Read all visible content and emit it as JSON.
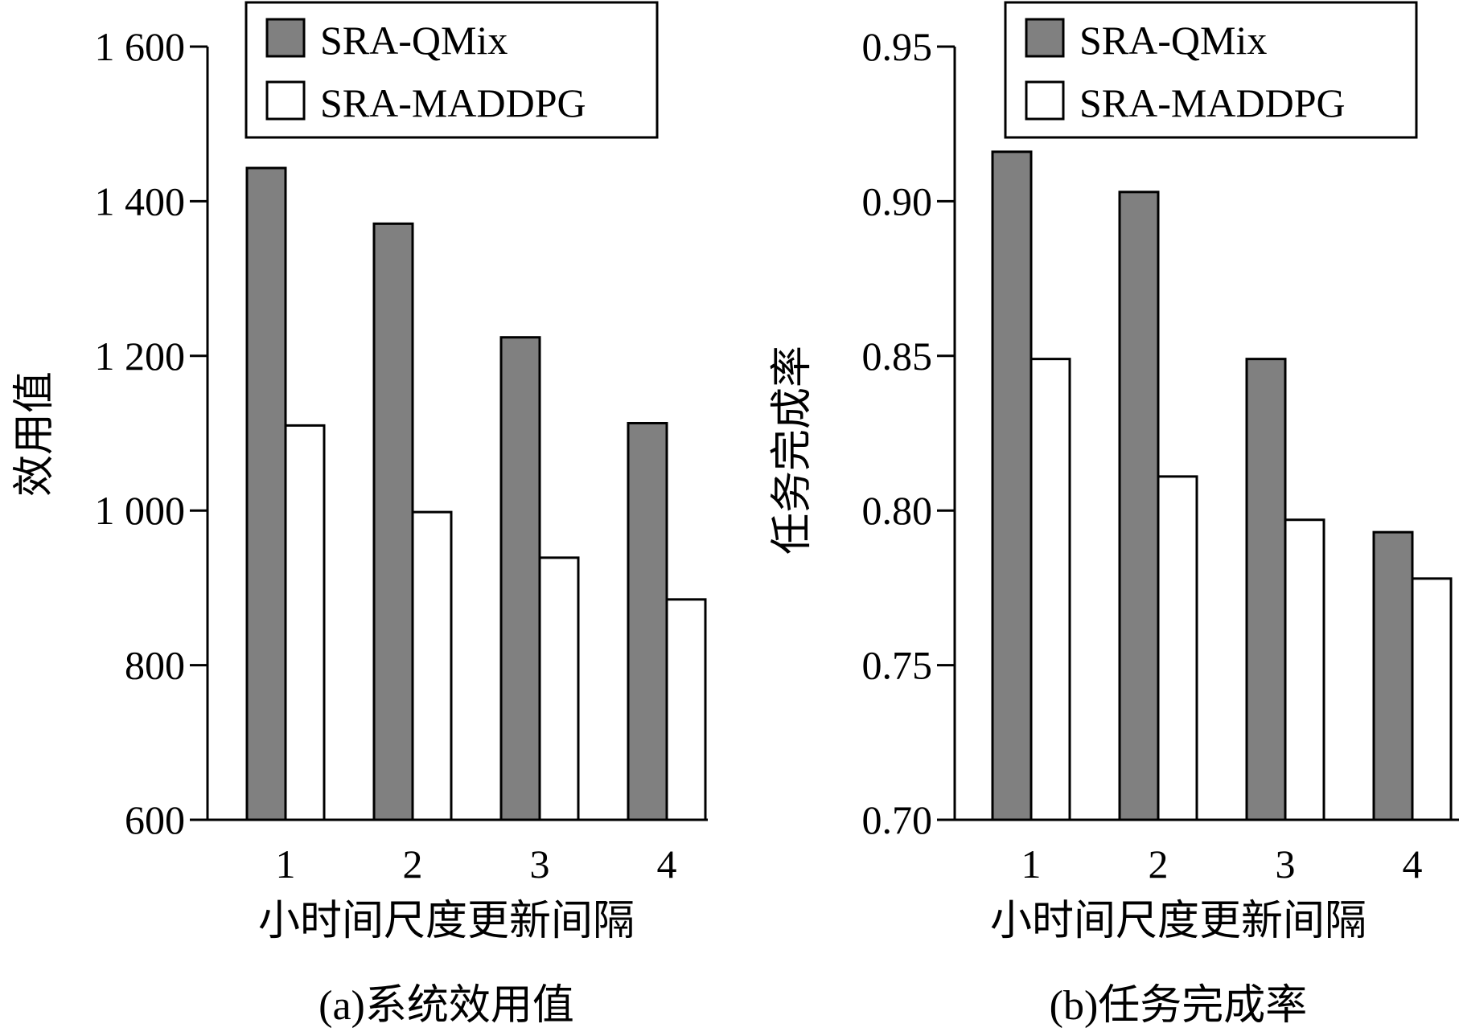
{
  "colors": {
    "qmix": "#808080",
    "maddpg": "#ffffff",
    "stroke": "#000000"
  },
  "chart_data": [
    {
      "type": "bar",
      "caption": "(a)系统效用值",
      "xlabel": "小时间尺度更新间隔",
      "ylabel": "效用值",
      "categories": [
        "1",
        "2",
        "3",
        "4"
      ],
      "ylim": [
        600,
        1600
      ],
      "yticks": [
        600,
        800,
        1000,
        1200,
        1400,
        1600
      ],
      "ytick_labels": [
        "600",
        "800",
        "1 000",
        "1 200",
        "1 400",
        "1 600"
      ],
      "legend_position": "top-right",
      "grid": false,
      "series": [
        {
          "name": "SRA-QMix",
          "values": [
            1443,
            1371,
            1224,
            1113
          ]
        },
        {
          "name": "SRA-MADDPG",
          "values": [
            1110,
            998,
            939,
            885
          ]
        }
      ]
    },
    {
      "type": "bar",
      "caption": "(b)任务完成率",
      "xlabel": "小时间尺度更新间隔",
      "ylabel": "任务完成率",
      "categories": [
        "1",
        "2",
        "3",
        "4"
      ],
      "ylim": [
        0.7,
        0.95
      ],
      "yticks": [
        0.7,
        0.75,
        0.8,
        0.85,
        0.9,
        0.95
      ],
      "ytick_labels": [
        "0.70",
        "0.75",
        "0.80",
        "0.85",
        "0.90",
        "0.95"
      ],
      "legend_position": "top-right",
      "grid": false,
      "series": [
        {
          "name": "SRA-QMix",
          "values": [
            0.916,
            0.903,
            0.849,
            0.793
          ]
        },
        {
          "name": "SRA-MADDPG",
          "values": [
            0.849,
            0.811,
            0.797,
            0.778
          ]
        }
      ]
    }
  ]
}
